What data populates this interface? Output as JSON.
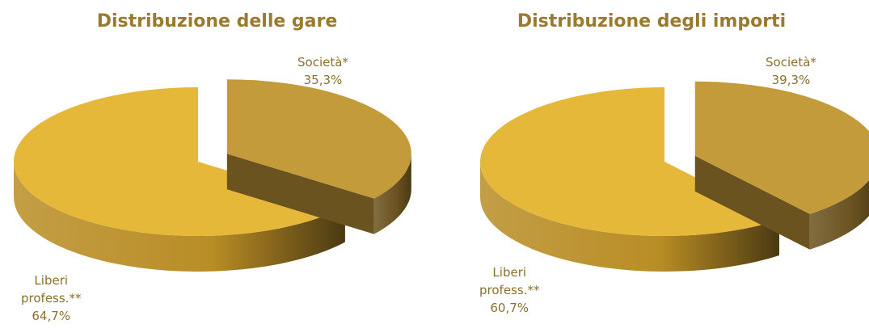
{
  "colors": {
    "title": "#9a7a2e",
    "label": "#8a7030",
    "liberi_top": "#e6b83a",
    "liberi_side": "#b98d25",
    "societa_top": "#c49b3a",
    "societa_side": "#6b5320"
  },
  "chart_data": [
    {
      "type": "pie",
      "title": "Distribuzione delle gare",
      "categories": [
        "Società*",
        "Liberi profess.**"
      ],
      "values": [
        35.3,
        64.7
      ],
      "value_labels": [
        "35,3%",
        "64,7%"
      ],
      "labels": {
        "societa": {
          "name": "Società*",
          "value": "35,3%"
        },
        "liberi": {
          "line1": "Liberi",
          "line2": "profess.**",
          "value": "64,7%"
        }
      },
      "exploded": "Società*",
      "style": "3d"
    },
    {
      "type": "pie",
      "title": "Distribuzione degli importi",
      "categories": [
        "Società*",
        "Liberi profess.**"
      ],
      "values": [
        39.3,
        60.7
      ],
      "value_labels": [
        "39,3%",
        "60,7%"
      ],
      "labels": {
        "societa": {
          "name": "Società*",
          "value": "39,3%"
        },
        "liberi": {
          "line1": "Liberi",
          "line2": "profess.**",
          "value": "60,7%"
        }
      },
      "exploded": "Società*",
      "style": "3d"
    }
  ]
}
